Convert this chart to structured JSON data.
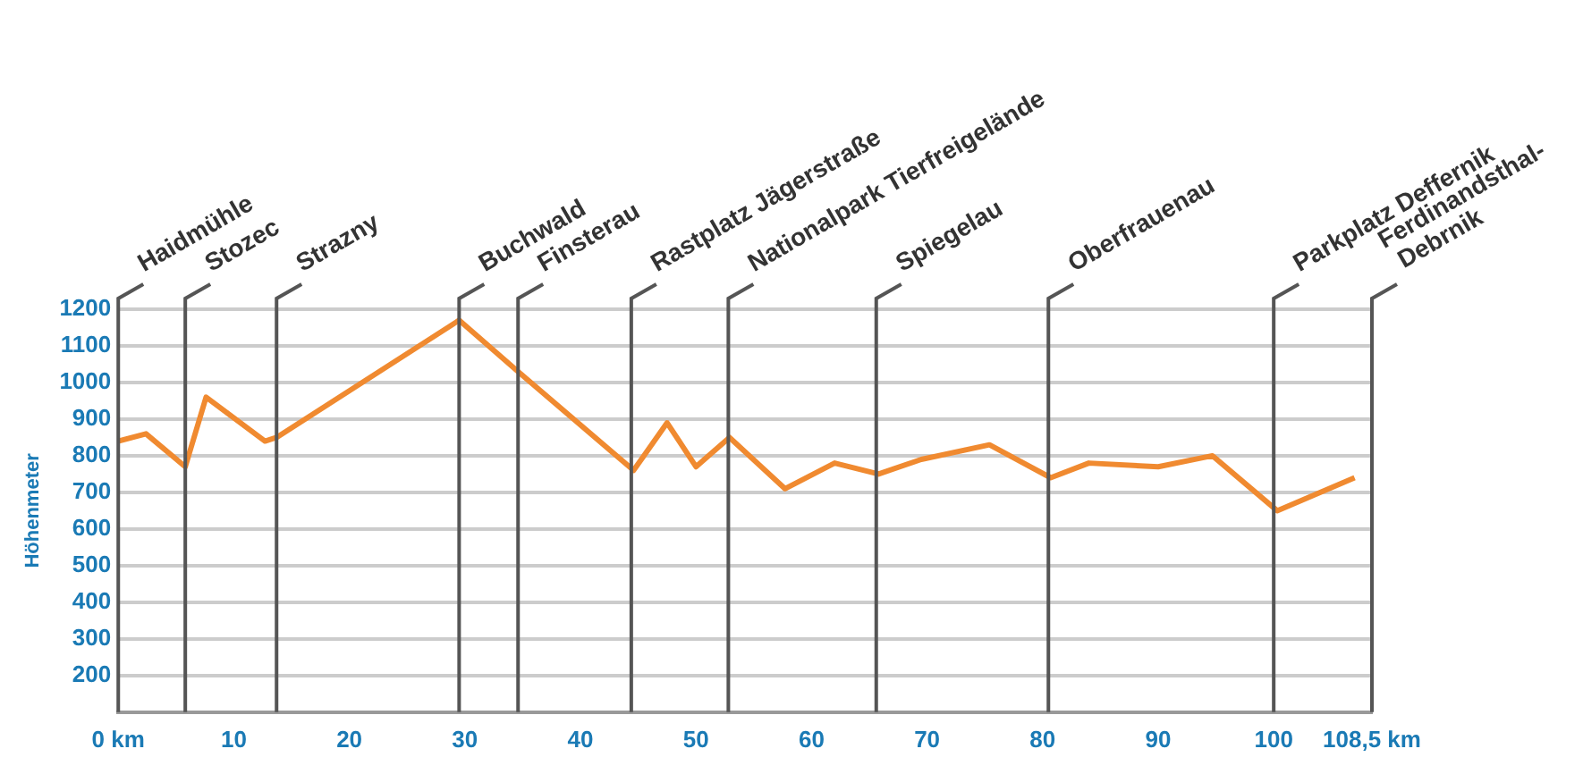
{
  "chart_data": {
    "type": "line",
    "ylabel": "Höhenmeter",
    "x": [
      0,
      2.4,
      5.8,
      7.6,
      12.7,
      13.7,
      29.5,
      34.6,
      44.6,
      47.5,
      50,
      52.9,
      57.7,
      62,
      65.8,
      69.5,
      75.4,
      80.7,
      84,
      90,
      94.7,
      100.3,
      107
    ],
    "series": [
      {
        "color": "#f08a30",
        "values": [
          840,
          860,
          770,
          960,
          840,
          850,
          1170,
          1030,
          760,
          890,
          770,
          850,
          710,
          780,
          750,
          790,
          830,
          740,
          780,
          770,
          800,
          650,
          740
        ]
      }
    ],
    "xlim": [
      0,
      108.5
    ],
    "xticks": [
      {
        "value": 0,
        "label": "0 km"
      },
      10,
      20,
      30,
      40,
      50,
      60,
      70,
      80,
      90,
      100,
      {
        "value": 108.5,
        "label": "108,5 km"
      }
    ],
    "ylim": [
      100,
      1200
    ],
    "yticks": [
      {
        "value": 100,
        "label": null
      },
      200,
      300,
      400,
      500,
      600,
      700,
      800,
      900,
      1000,
      1100,
      1200
    ],
    "grid": "y",
    "legend": false,
    "marker": "none",
    "line_style": "solid",
    "ref_lines": [
      {
        "axis": "x",
        "value": 0,
        "label": "Haidmühle",
        "color": "#555555"
      },
      {
        "axis": "x",
        "value": 5.8,
        "label": "Stozec",
        "color": "#555555"
      },
      {
        "axis": "x",
        "value": 13.7,
        "label": "Strazny",
        "color": "#555555"
      },
      {
        "axis": "x",
        "value": 29.5,
        "label": "Buchwald",
        "color": "#555555"
      },
      {
        "axis": "x",
        "value": 34.6,
        "label": "Finsterau",
        "color": "#555555"
      },
      {
        "axis": "x",
        "value": 44.4,
        "label": "Rastplatz Jägerstraße",
        "color": "#555555"
      },
      {
        "axis": "x",
        "value": 52.8,
        "label": "Nationalpark Tierfreigelände",
        "color": "#555555"
      },
      {
        "axis": "x",
        "value": 65.6,
        "label": "Spiegelau",
        "color": "#555555"
      },
      {
        "axis": "x",
        "value": 80.5,
        "label": "Oberfrauenau",
        "color": "#555555"
      },
      {
        "axis": "x",
        "value": 100,
        "label": "Parkplatz Deffernik",
        "color": "#555555"
      },
      {
        "axis": "x",
        "value": 108.5,
        "label": "Ferdinandsthal-\nDebrnik",
        "color": "#555555"
      }
    ]
  }
}
